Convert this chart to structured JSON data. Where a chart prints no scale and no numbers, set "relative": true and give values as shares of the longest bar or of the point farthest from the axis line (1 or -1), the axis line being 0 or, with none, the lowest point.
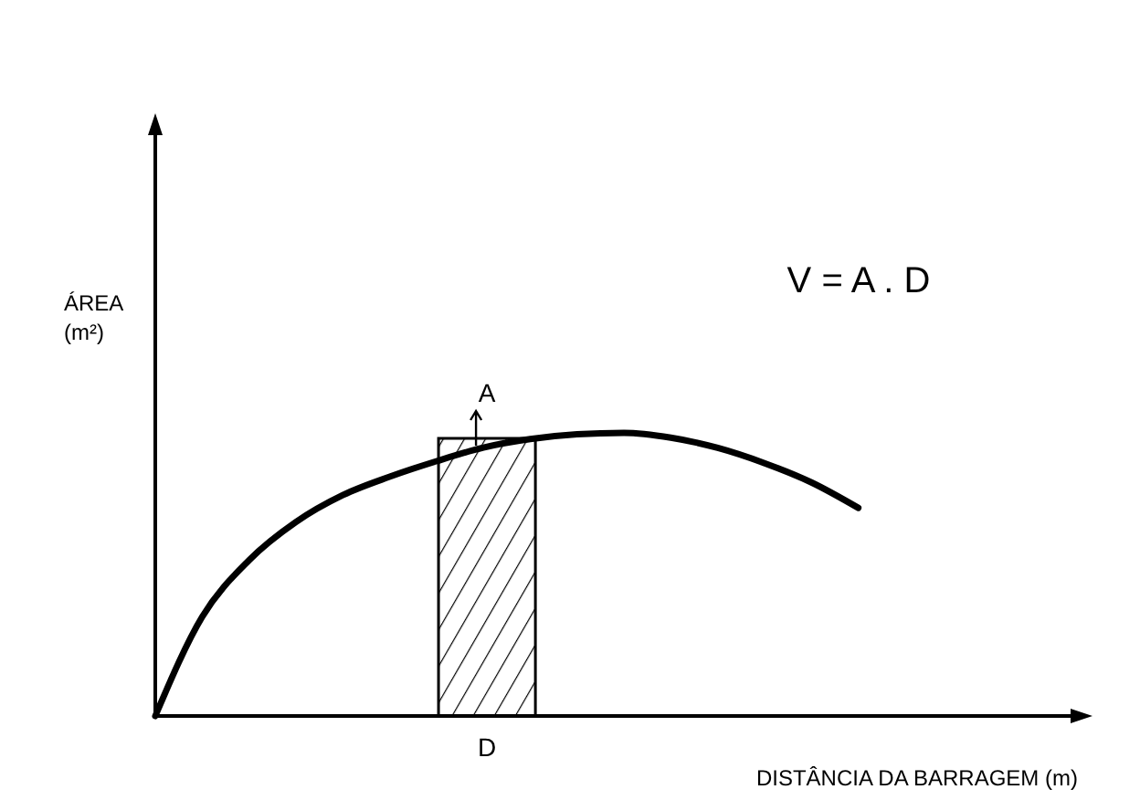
{
  "chart_data": {
    "type": "line",
    "relative": true,
    "xlabel": "DISTÂNCIA DA BARRAGEM (m)",
    "ylabel": "ÁREA (m²)",
    "categories": [
      null,
      null,
      null,
      null,
      null,
      null,
      null,
      null,
      null,
      null,
      null,
      null,
      null,
      null,
      null,
      null
    ],
    "series": [
      {
        "color": "#000000",
        "values": [
          0,
          0.35,
          0.55,
          0.685,
          0.78,
          0.845,
          0.9,
          0.948,
          0.978,
          0.995,
          1,
          0.983,
          0.947,
          0.893,
          0.825,
          0.735
        ]
      }
    ],
    "annotations": [
      "V = A . D",
      "A",
      "D"
    ]
  }
}
